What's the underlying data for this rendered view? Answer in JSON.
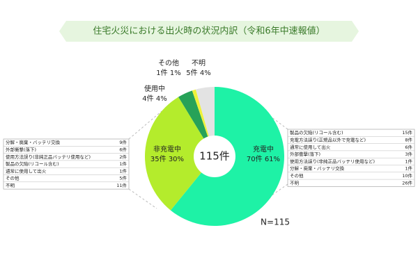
{
  "chart_data": {
    "type": "pie",
    "title": "住宅火災における出火時の状況内訳（令和6年中速報値）",
    "categories": [
      "充電中",
      "非充電中",
      "使用中",
      "その他",
      "不明"
    ],
    "values": [
      70,
      35,
      4,
      1,
      5
    ],
    "value_labels": [
      "70件 61%",
      "35件 30%",
      "4件 4%",
      "1件 1%",
      "5件 4%"
    ],
    "colors": [
      "#1ef2a6",
      "#b4ec2c",
      "#27a258",
      "#eef23a",
      "#e3e3e3"
    ],
    "center_label": "115件",
    "note": "N=115"
  },
  "tables": {
    "left": {
      "rows": [
        [
          "分解・廃棄・バッテリ交換",
          "9件"
        ],
        [
          "外部衝撃(落下)",
          "6件"
        ],
        [
          "使用方法誤り(非純正品バッテリ使用など)",
          "2件"
        ],
        [
          "製品の欠陥(リコール含む)",
          "1件"
        ],
        [
          "通常に使用して出火",
          "1件"
        ],
        [
          "その他",
          "5件"
        ],
        [
          "不明",
          "11件"
        ]
      ]
    },
    "right": {
      "rows": [
        [
          "製品の欠陥(リコール含む)",
          "15件"
        ],
        [
          "充電方法誤り(正規品以外で充電など)",
          "8件"
        ],
        [
          "通常に使用して出火",
          "6件"
        ],
        [
          "外部衝撃(落下)",
          "3件"
        ],
        [
          "使用方法誤り(非純正品バッテリ使用など)",
          "1件"
        ],
        [
          "分解・廃棄・バッテリ交換",
          "1件"
        ],
        [
          "その他",
          "10件"
        ],
        [
          "不明",
          "26件"
        ]
      ]
    }
  }
}
